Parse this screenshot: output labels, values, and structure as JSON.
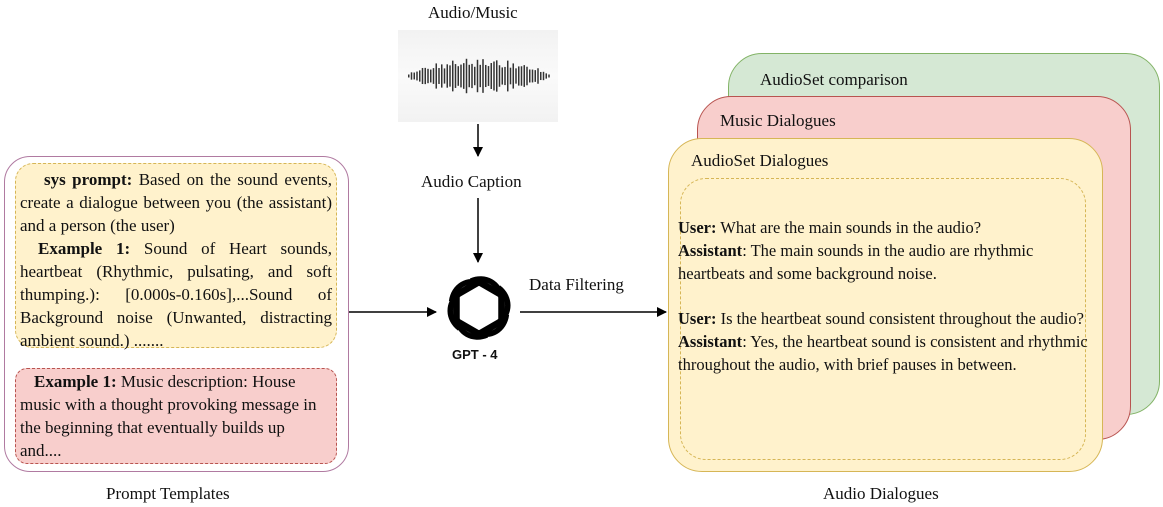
{
  "top_label": "Audio/Music",
  "caption_label": "Audio Caption",
  "gpt_label": "GPT - 4",
  "filter_label": "Data Filtering",
  "prompt_templates": {
    "caption": "Prompt Templates",
    "sys_prompt_heading": "sys prompt:",
    "sys_prompt_text": " Based on the sound events, create a dialogue between you (the assistant) and a person (the user)",
    "example1_heading": "Example 1:",
    "example1_text": " Sound of Heart sounds, heartbeat (Rhythmic, pulsating, and soft thumping.): [0.000s-0.160s],...Sound of Background noise (Unwanted, distracting ambient sound.) .......",
    "music_example_heading": "Example 1:",
    "music_example_text": " Music description: House music with a thought provoking message in the beginning that eventually builds up and...."
  },
  "audio_dialogues": {
    "caption": "Audio Dialogues",
    "cards": [
      "AudioSet comparison",
      "Music Dialogues",
      "AudioSet Dialogues"
    ],
    "turns": [
      {
        "speaker": "User:",
        "text": "  What are the main sounds in the audio?"
      },
      {
        "speaker": "Assistant",
        "text": ": The main sounds in the audio are rhythmic heartbeats and some background noise."
      },
      {
        "speaker": "User:",
        "text": " Is the heartbeat sound consistent throughout the audio?"
      },
      {
        "speaker": "Assistant",
        "text": ": Yes, the heartbeat sound is consistent and rhythmic throughout the audio, with brief pauses in between."
      }
    ]
  },
  "colors": {
    "template_border": "#b07aa1",
    "sys_fill": "#fff2cc",
    "sys_border": "#d6b656",
    "music_fill": "#f8cecc",
    "music_border": "#b85450",
    "green_fill": "#d5e8d4",
    "green_border": "#82b366"
  },
  "icons": [
    "waveform-icon",
    "openai-logo-icon"
  ]
}
